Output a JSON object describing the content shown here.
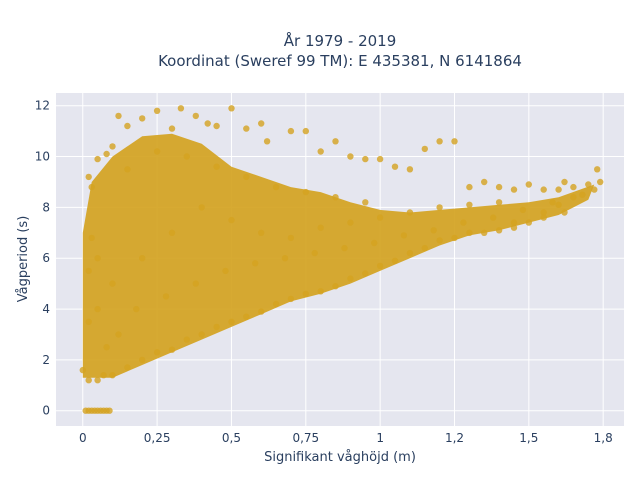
{
  "chart_data": {
    "type": "scatter",
    "title_line1": "År 1979 - 2019",
    "title_line2": "Koordinat (Sweref 99 TM): E 435381, N 6141864",
    "xlabel": "Signifikant våghöjd (m)",
    "ylabel": "Vågperiod (s)",
    "xlim": [
      -0.09,
      1.82
    ],
    "ylim": [
      -0.6,
      12.5
    ],
    "x_ticks": [
      {
        "value": 0,
        "label": "0"
      },
      {
        "value": 0.25,
        "label": "0,25"
      },
      {
        "value": 0.5,
        "label": "0,5"
      },
      {
        "value": 0.75,
        "label": "0,75"
      },
      {
        "value": 1.0,
        "label": "1"
      },
      {
        "value": 1.25,
        "label": "1,2"
      },
      {
        "value": 1.5,
        "label": "1,5"
      },
      {
        "value": 1.75,
        "label": "1,8"
      }
    ],
    "y_ticks": [
      {
        "value": 0,
        "label": "0"
      },
      {
        "value": 2,
        "label": "2"
      },
      {
        "value": 4,
        "label": "4"
      },
      {
        "value": 6,
        "label": "6"
      },
      {
        "value": 8,
        "label": "8"
      },
      {
        "value": 10,
        "label": "10"
      },
      {
        "value": 12,
        "label": "12"
      }
    ],
    "grid": true,
    "colors": {
      "marker": "#d4a321",
      "plot_bg": "#e5e6ef",
      "grid": "#ffffff",
      "text": "#2a3f5f"
    },
    "series": [
      {
        "values": [
          [
            0.01,
            0
          ],
          [
            0.02,
            0
          ],
          [
            0.03,
            0
          ],
          [
            0.04,
            0
          ],
          [
            0.05,
            0
          ],
          [
            0.06,
            0
          ],
          [
            0.07,
            0
          ],
          [
            0.08,
            0
          ],
          [
            0.09,
            0
          ],
          [
            0.0,
            1.6
          ],
          [
            0.02,
            1.2
          ],
          [
            0.02,
            3.5
          ],
          [
            0.02,
            5.5
          ],
          [
            0.03,
            6.8
          ],
          [
            0.03,
            8.8
          ],
          [
            0.02,
            9.2
          ],
          [
            0.05,
            9.9
          ],
          [
            0.08,
            10.1
          ],
          [
            0.1,
            10.4
          ],
          [
            0.12,
            11.6
          ],
          [
            0.15,
            11.2
          ],
          [
            0.2,
            11.5
          ],
          [
            0.25,
            11.8
          ],
          [
            0.3,
            11.1
          ],
          [
            0.33,
            11.9
          ],
          [
            0.38,
            11.6
          ],
          [
            0.42,
            11.3
          ],
          [
            0.45,
            11.2
          ],
          [
            0.5,
            11.9
          ],
          [
            0.55,
            11.1
          ],
          [
            0.6,
            11.3
          ],
          [
            0.62,
            10.6
          ],
          [
            0.7,
            11.0
          ],
          [
            0.75,
            11.0
          ],
          [
            0.8,
            10.2
          ],
          [
            0.85,
            10.6
          ],
          [
            0.9,
            10.0
          ],
          [
            0.95,
            9.9
          ],
          [
            1.0,
            9.9
          ],
          [
            1.05,
            9.6
          ],
          [
            1.1,
            9.5
          ],
          [
            1.15,
            10.3
          ],
          [
            1.2,
            10.6
          ],
          [
            1.25,
            10.6
          ],
          [
            1.3,
            8.8
          ],
          [
            1.35,
            9.0
          ],
          [
            1.4,
            8.8
          ],
          [
            1.45,
            8.7
          ],
          [
            1.5,
            8.9
          ],
          [
            1.55,
            8.7
          ],
          [
            1.6,
            8.7
          ],
          [
            1.62,
            9.0
          ],
          [
            1.65,
            8.8
          ],
          [
            1.7,
            8.9
          ],
          [
            1.73,
            9.5
          ],
          [
            1.74,
            9.0
          ],
          [
            1.72,
            8.7
          ],
          [
            1.65,
            8.4
          ],
          [
            1.6,
            8.1
          ],
          [
            1.55,
            7.8
          ],
          [
            1.5,
            7.4
          ],
          [
            1.45,
            7.2
          ],
          [
            1.4,
            7.1
          ],
          [
            1.3,
            7.0
          ],
          [
            1.2,
            6.7
          ],
          [
            1.1,
            6.2
          ],
          [
            1.0,
            5.7
          ],
          [
            0.9,
            5.2
          ],
          [
            0.8,
            4.7
          ],
          [
            0.7,
            4.4
          ],
          [
            0.6,
            3.9
          ],
          [
            0.5,
            3.5
          ],
          [
            0.4,
            3.0
          ],
          [
            0.3,
            2.4
          ],
          [
            0.2,
            2.0
          ],
          [
            0.1,
            1.4
          ],
          [
            0.05,
            1.2
          ],
          [
            0.07,
            1.4
          ],
          [
            0.15,
            1.7
          ],
          [
            0.25,
            2.3
          ],
          [
            0.35,
            2.8
          ],
          [
            0.45,
            3.3
          ],
          [
            0.55,
            3.7
          ],
          [
            0.65,
            4.2
          ],
          [
            0.75,
            4.6
          ],
          [
            0.85,
            4.9
          ],
          [
            0.95,
            5.4
          ],
          [
            1.05,
            5.9
          ],
          [
            1.15,
            6.4
          ],
          [
            1.25,
            6.8
          ],
          [
            1.35,
            7.0
          ],
          [
            1.45,
            7.4
          ],
          [
            1.55,
            7.6
          ],
          [
            1.62,
            7.8
          ],
          [
            0.1,
            5.0
          ],
          [
            0.2,
            6.0
          ],
          [
            0.3,
            7.0
          ],
          [
            0.4,
            8.0
          ],
          [
            0.5,
            7.5
          ],
          [
            0.6,
            7.0
          ],
          [
            0.7,
            6.8
          ],
          [
            0.8,
            7.2
          ],
          [
            0.9,
            7.4
          ],
          [
            1.0,
            7.6
          ],
          [
            1.1,
            7.8
          ],
          [
            1.2,
            8.0
          ],
          [
            1.3,
            8.1
          ],
          [
            1.4,
            8.2
          ],
          [
            0.15,
            9.5
          ],
          [
            0.25,
            10.2
          ],
          [
            0.35,
            10.0
          ],
          [
            0.45,
            9.6
          ],
          [
            0.55,
            9.2
          ],
          [
            0.65,
            8.8
          ],
          [
            0.75,
            8.6
          ],
          [
            0.85,
            8.4
          ],
          [
            0.95,
            8.2
          ],
          [
            0.05,
            6.0
          ],
          [
            0.05,
            4.0
          ],
          [
            0.08,
            2.5
          ],
          [
            0.12,
            3.0
          ],
          [
            0.18,
            4.0
          ],
          [
            0.28,
            4.5
          ],
          [
            0.38,
            5.0
          ],
          [
            0.48,
            5.5
          ],
          [
            0.58,
            5.8
          ],
          [
            0.68,
            6.0
          ],
          [
            0.78,
            6.2
          ],
          [
            0.88,
            6.4
          ],
          [
            0.98,
            6.6
          ],
          [
            1.08,
            6.9
          ],
          [
            1.18,
            7.1
          ],
          [
            1.28,
            7.4
          ],
          [
            1.38,
            7.6
          ],
          [
            1.48,
            7.9
          ],
          [
            1.58,
            8.2
          ],
          [
            1.68,
            8.5
          ]
        ]
      }
    ]
  }
}
